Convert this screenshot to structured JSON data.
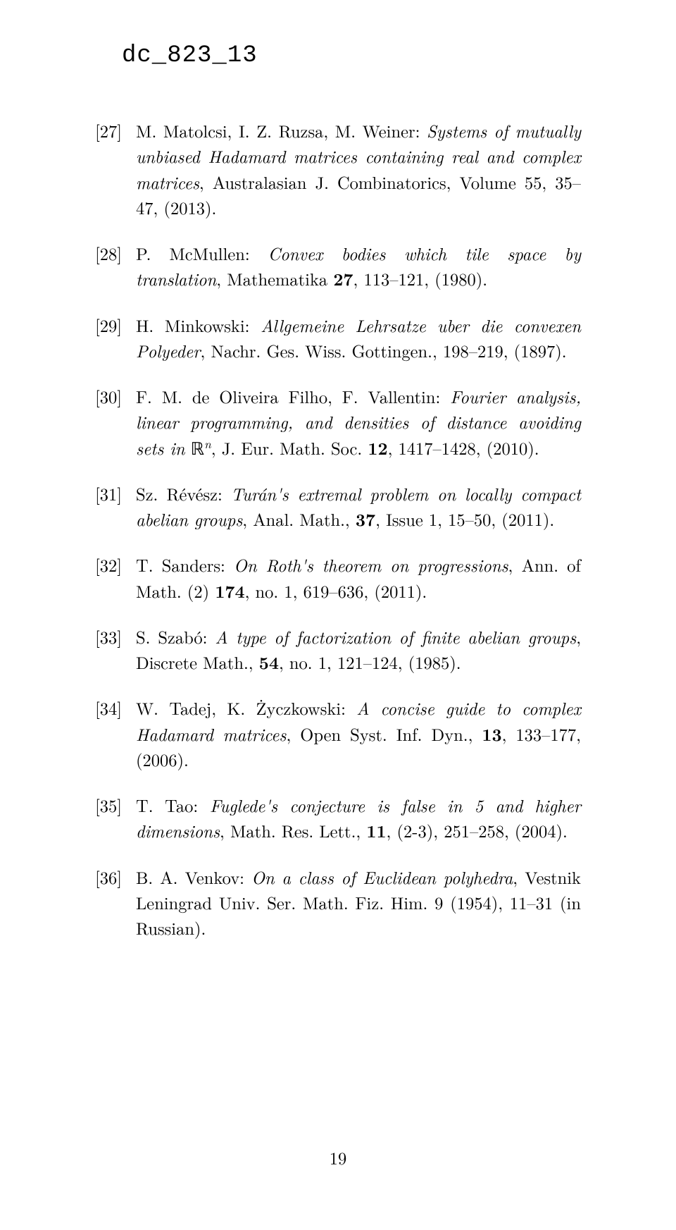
{
  "header_code": "dc_823_13",
  "page_number": "19",
  "references": [
    {
      "num": "[27]",
      "html": "M. Matolcsi, I. Z. Ruzsa, M. Weiner: <i>Systems of mutually unbiased Hadamard matrices containing real and complex matrices</i>, Australasian J. Combinatorics, Volume 55, 35–47, (2013)."
    },
    {
      "num": "[28]",
      "html": "P. McMullen: <i>Convex bodies which tile space by translation</i>, Mathematika <span class=\"bold\">27</span>, 113–121, (1980)."
    },
    {
      "num": "[29]",
      "html": "H. Minkowski: <i>Allgemeine Lehrsatze uber die convexen Polyeder</i>, Nachr. Ges. Wiss. Gottingen., 198–219, (1897)."
    },
    {
      "num": "[30]",
      "html": "F. M. de Oliveira Filho, F. Vallentin: <i>Fourier analysis, linear programming, and densities of distance avoiding sets in</i> ℝ<sup><i>n</i></sup>, J. Eur. Math. Soc. <span class=\"bold\">12</span>, 1417–1428, (2010)."
    },
    {
      "num": "[31]",
      "html": "Sz. Révész: <i>Turán's extremal problem on locally compact abelian groups</i>, Anal. Math., <span class=\"bold\">37</span>, Issue 1, 15–50, (2011)."
    },
    {
      "num": "[32]",
      "html": "T. Sanders: <i>On Roth's theorem on progressions</i>, Ann. of Math. (2) <span class=\"bold\">174</span>, no. 1, 619–636, (2011)."
    },
    {
      "num": "[33]",
      "html": "S. Szabó: <i>A type of factorization of finite abelian groups</i>, Discrete Math., <span class=\"bold\">54</span>, no. 1, 121–124, (1985)."
    },
    {
      "num": "[34]",
      "html": "W. Tadej, K. Życzkowski: <i>A concise guide to complex Hadamard matrices</i>, Open Syst. Inf. Dyn., <span class=\"bold\">13</span>, 133–177, (2006)."
    },
    {
      "num": "[35]",
      "html": "T. Tao: <i>Fuglede's conjecture is false in 5 and higher dimensions</i>, Math. Res. Lett., <span class=\"bold\">11</span>, (2-3), 251–258, (2004)."
    },
    {
      "num": "[36]",
      "html": "B. A. Venkov: <i>On a class of Euclidean polyhedra</i>, Vestnik Leningrad Univ. Ser. Math. Fiz. Him. 9 (1954), 11–31 (in Russian)."
    }
  ]
}
